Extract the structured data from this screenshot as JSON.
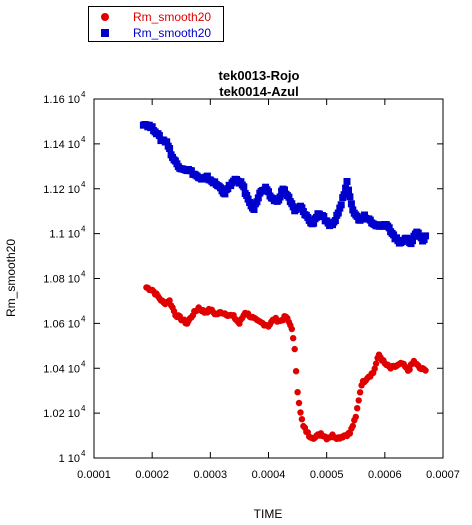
{
  "chart_data": {
    "type": "scatter",
    "title": [
      "tek0013-Rojo",
      "tek0014-Azul"
    ],
    "xlabel": "TIME",
    "ylabel": "Rm_smooth20",
    "xlim": [
      0.0001,
      0.0007
    ],
    "ylim": [
      10000,
      11600
    ],
    "x_ticks": [
      0.0001,
      0.0002,
      0.0003,
      0.0004,
      0.0005,
      0.0006,
      0.0007
    ],
    "x_tick_labels": [
      "0.0001",
      "0.0002",
      "0.0003",
      "0.0004",
      "0.0005",
      "0.0006",
      "0.0007"
    ],
    "y_ticks": [
      10000,
      10200,
      10400,
      10600,
      10800,
      11000,
      11200,
      11400,
      11600
    ],
    "y_tick_mantissa": [
      "1",
      "1.02",
      "1.04",
      "1.06",
      "1.08",
      "1.1",
      "1.12",
      "1.14",
      "1.16"
    ],
    "y_tick_exponent": "4",
    "y_tick_base": "10",
    "legend_position": "top-left",
    "series": [
      {
        "name": "Rm_smooth20",
        "color": "#e00000",
        "marker": "circle",
        "points": [
          [
            0.00019,
            10760
          ],
          [
            0.0002,
            10750
          ],
          [
            0.00021,
            10720
          ],
          [
            0.00022,
            10690
          ],
          [
            0.00023,
            10700
          ],
          [
            0.00024,
            10640
          ],
          [
            0.00025,
            10620
          ],
          [
            0.00026,
            10600
          ],
          [
            0.00027,
            10640
          ],
          [
            0.00028,
            10670
          ],
          [
            0.00029,
            10650
          ],
          [
            0.0003,
            10660
          ],
          [
            0.00031,
            10640
          ],
          [
            0.00032,
            10650
          ],
          [
            0.00033,
            10640
          ],
          [
            0.00034,
            10630
          ],
          [
            0.00035,
            10600
          ],
          [
            0.00036,
            10650
          ],
          [
            0.00037,
            10630
          ],
          [
            0.00038,
            10610
          ],
          [
            0.00039,
            10600
          ],
          [
            0.0004,
            10590
          ],
          [
            0.00041,
            10620
          ],
          [
            0.00042,
            10610
          ],
          [
            0.00043,
            10630
          ],
          [
            0.00044,
            10580
          ],
          [
            0.000445,
            10480
          ],
          [
            0.00045,
            10300
          ],
          [
            0.000455,
            10200
          ],
          [
            0.00046,
            10140
          ],
          [
            0.00047,
            10100
          ],
          [
            0.00048,
            10090
          ],
          [
            0.00049,
            10110
          ],
          [
            0.0005,
            10090
          ],
          [
            0.00051,
            10100
          ],
          [
            0.00052,
            10090
          ],
          [
            0.00053,
            10100
          ],
          [
            0.00054,
            10110
          ],
          [
            0.00055,
            10180
          ],
          [
            0.000555,
            10260
          ],
          [
            0.00056,
            10330
          ],
          [
            0.00057,
            10360
          ],
          [
            0.00058,
            10380
          ],
          [
            0.00059,
            10460
          ],
          [
            0.0006,
            10420
          ],
          [
            0.00061,
            10400
          ],
          [
            0.00062,
            10410
          ],
          [
            0.00063,
            10420
          ],
          [
            0.00064,
            10390
          ],
          [
            0.00065,
            10430
          ],
          [
            0.00066,
            10400
          ],
          [
            0.00067,
            10390
          ]
        ]
      },
      {
        "name": "Rm_smooth20",
        "color": "#0000cc",
        "marker": "square",
        "points": [
          [
            0.000185,
            11490
          ],
          [
            0.000195,
            11480
          ],
          [
            0.000205,
            11460
          ],
          [
            0.000215,
            11420
          ],
          [
            0.000225,
            11410
          ],
          [
            0.000235,
            11340
          ],
          [
            0.000245,
            11300
          ],
          [
            0.000255,
            11290
          ],
          [
            0.000265,
            11280
          ],
          [
            0.000275,
            11260
          ],
          [
            0.000285,
            11240
          ],
          [
            0.000295,
            11250
          ],
          [
            0.000305,
            11230
          ],
          [
            0.000315,
            11210
          ],
          [
            0.000325,
            11180
          ],
          [
            0.000335,
            11220
          ],
          [
            0.000345,
            11240
          ],
          [
            0.000355,
            11220
          ],
          [
            0.000365,
            11150
          ],
          [
            0.000375,
            11110
          ],
          [
            0.000385,
            11180
          ],
          [
            0.000395,
            11200
          ],
          [
            0.000405,
            11160
          ],
          [
            0.000415,
            11140
          ],
          [
            0.000425,
            11200
          ],
          [
            0.000435,
            11160
          ],
          [
            0.000445,
            11100
          ],
          [
            0.000455,
            11120
          ],
          [
            0.000465,
            11080
          ],
          [
            0.000475,
            11040
          ],
          [
            0.000485,
            11090
          ],
          [
            0.000495,
            11070
          ],
          [
            0.000505,
            11030
          ],
          [
            0.000515,
            11060
          ],
          [
            0.000525,
            11130
          ],
          [
            0.000535,
            11230
          ],
          [
            0.000545,
            11110
          ],
          [
            0.000555,
            11060
          ],
          [
            0.000565,
            11080
          ],
          [
            0.000575,
            11060
          ],
          [
            0.000585,
            11040
          ],
          [
            0.000595,
            11030
          ],
          [
            0.000605,
            11040
          ],
          [
            0.000615,
            10990
          ],
          [
            0.000625,
            10960
          ],
          [
            0.000635,
            10980
          ],
          [
            0.000645,
            10960
          ],
          [
            0.000655,
            11010
          ],
          [
            0.000665,
            10970
          ],
          [
            0.00067,
            10990
          ]
        ]
      }
    ]
  }
}
